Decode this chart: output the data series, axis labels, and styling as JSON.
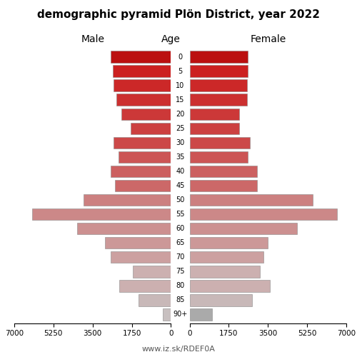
{
  "title": "demographic pyramid Plön District, year 2022",
  "male_label": "Male",
  "female_label": "Female",
  "age_label": "Age",
  "footer": "www.iz.sk/RDEF0A",
  "age_groups": [
    "90+",
    "85",
    "80",
    "75",
    "70",
    "65",
    "60",
    "55",
    "50",
    "45",
    "40",
    "35",
    "30",
    "25",
    "20",
    "15",
    "10",
    "5",
    "0"
  ],
  "male_values": [
    350,
    1450,
    2300,
    1700,
    2700,
    2950,
    4200,
    6200,
    3900,
    2500,
    2700,
    2350,
    2550,
    1800,
    2200,
    2450,
    2550,
    2600,
    2700
  ],
  "female_values": [
    1000,
    2800,
    3600,
    3150,
    3300,
    3500,
    4800,
    6600,
    5500,
    3000,
    3000,
    2600,
    2700,
    2200,
    2200,
    2550,
    2550,
    2600,
    2600
  ],
  "bar_colors": [
    "#c8c0c0",
    "#c8b8b8",
    "#ccb0b0",
    "#ccb0b0",
    "#cca0a0",
    "#cc9898",
    "#cc9090",
    "#cc8888",
    "#cc8080",
    "#cc6868",
    "#cc6060",
    "#cc5555",
    "#cc4848",
    "#cc4040",
    "#cc3838",
    "#cc3030",
    "#cc2828",
    "#cc2020",
    "#bb1010"
  ],
  "female_top_color": "#aaaaaa",
  "xlim": 7000,
  "xticks": [
    0,
    1750,
    3500,
    5250,
    7000
  ],
  "bar_height": 0.82,
  "edgecolor": "#888888",
  "edgewidth": 0.4
}
